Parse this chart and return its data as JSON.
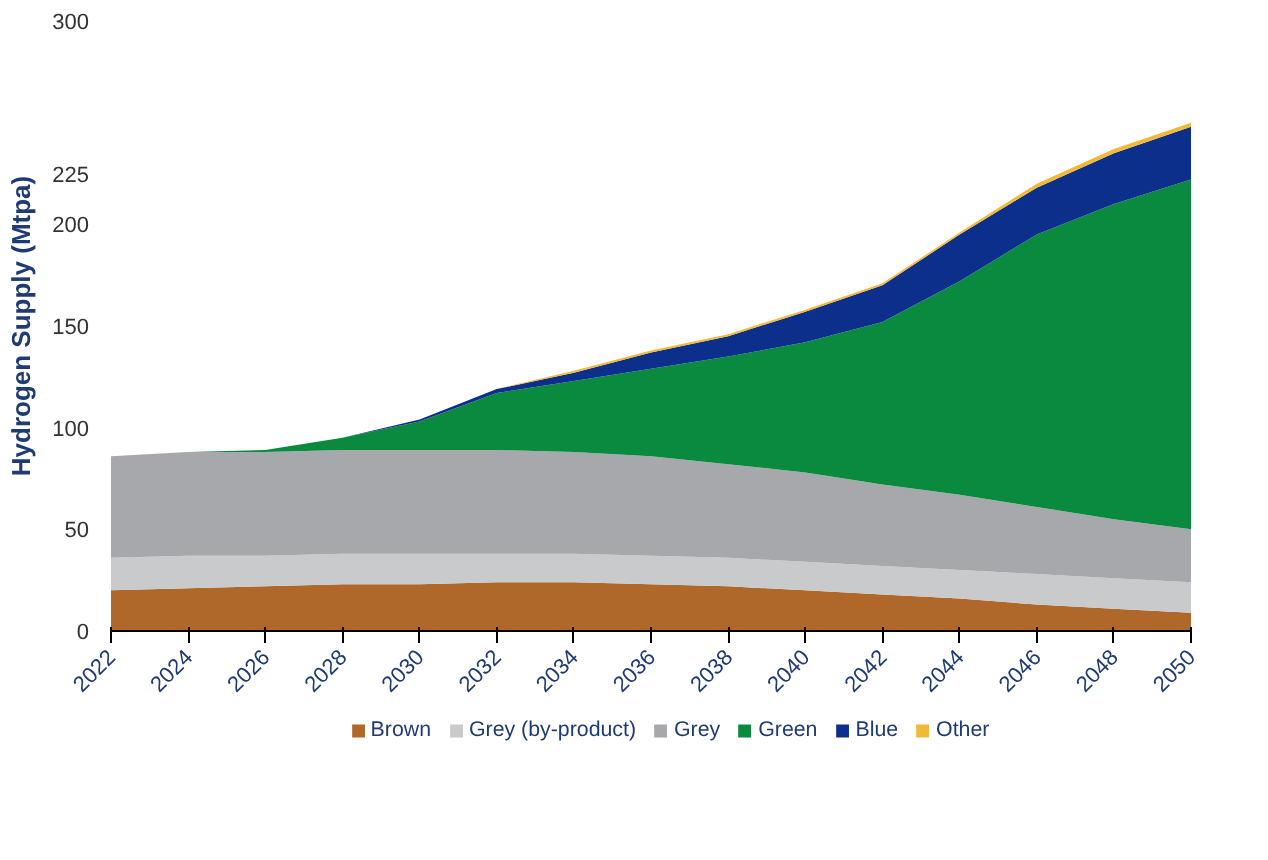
{
  "chart_data": {
    "type": "area",
    "stacked": true,
    "ylabel": "Hydrogen Supply (Mtpa)",
    "x": [
      2022,
      2024,
      2026,
      2028,
      2030,
      2032,
      2034,
      2036,
      2038,
      2040,
      2042,
      2044,
      2046,
      2048,
      2050
    ],
    "series": [
      {
        "name": "Brown",
        "color": "#b0682a",
        "values": [
          20,
          21,
          22,
          23,
          23,
          24,
          24,
          23,
          22,
          20,
          18,
          16,
          13,
          11,
          9
        ]
      },
      {
        "name": "Grey (by-product)",
        "color": "#c8cacc",
        "values": [
          16,
          16,
          15,
          15,
          15,
          14,
          14,
          14,
          14,
          14,
          14,
          14,
          15,
          15,
          15
        ]
      },
      {
        "name": "Grey",
        "color": "#a6a8ab",
        "values": [
          50,
          51,
          51,
          51,
          51,
          51,
          50,
          49,
          46,
          44,
          40,
          37,
          33,
          29,
          26
        ]
      },
      {
        "name": "Green",
        "color": "#0a8a3e",
        "values": [
          0,
          0,
          1,
          6,
          14,
          28,
          35,
          43,
          53,
          64,
          80,
          105,
          134,
          155,
          172
        ]
      },
      {
        "name": "Blue",
        "color": "#0c2f8c",
        "values": [
          0,
          0,
          0,
          0,
          1,
          2,
          4,
          8,
          10,
          15,
          18,
          23,
          23,
          25,
          26
        ]
      },
      {
        "name": "Other",
        "color": "#f2b938",
        "values": [
          0,
          0,
          0,
          0,
          0,
          0,
          1,
          1,
          1,
          1,
          1,
          1,
          2,
          2,
          2
        ]
      }
    ],
    "xlim": [
      2022,
      2050
    ],
    "xticks": [
      2022,
      2024,
      2026,
      2028,
      2030,
      2032,
      2034,
      2036,
      2038,
      2040,
      2042,
      2044,
      2046,
      2048,
      2050
    ],
    "ylim": [
      0,
      300
    ],
    "yticks": [
      0,
      50,
      100,
      150,
      200,
      225,
      300
    ],
    "grid": false,
    "legend": "bottom"
  }
}
